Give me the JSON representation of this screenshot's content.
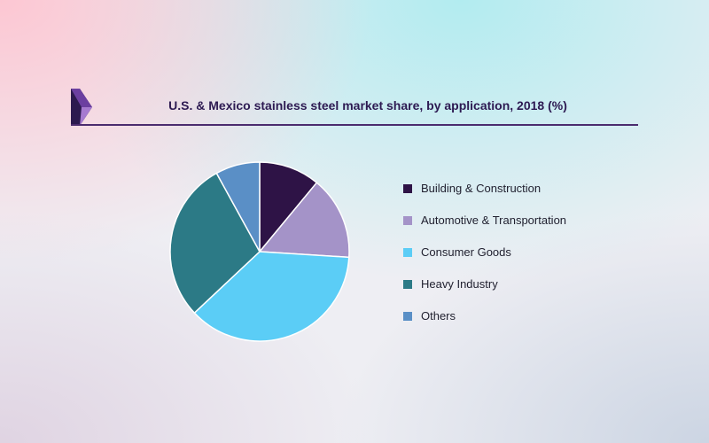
{
  "chart_data": {
    "type": "pie",
    "title": "U.S. & Mexico stainless steel market share, by application, 2018 (%)",
    "slices": [
      {
        "label": "Building & Construction",
        "value": 11,
        "color": "#2e1346"
      },
      {
        "label": "Automotive & Transportation",
        "value": 15,
        "color": "#a493c8"
      },
      {
        "label": "Consumer Goods",
        "value": 37,
        "color": "#5bcdf6"
      },
      {
        "label": "Heavy Industry",
        "value": 29,
        "color": "#2c7a86"
      },
      {
        "label": "Others",
        "value": 8,
        "color": "#5a8fc6"
      }
    ],
    "start_angle": "12 o'clock",
    "direction": "clockwise",
    "legend_position": "right"
  },
  "brand": {
    "logo_colors": [
      "#6b3fa0",
      "#2c1a4f",
      "#a67ad0"
    ]
  }
}
